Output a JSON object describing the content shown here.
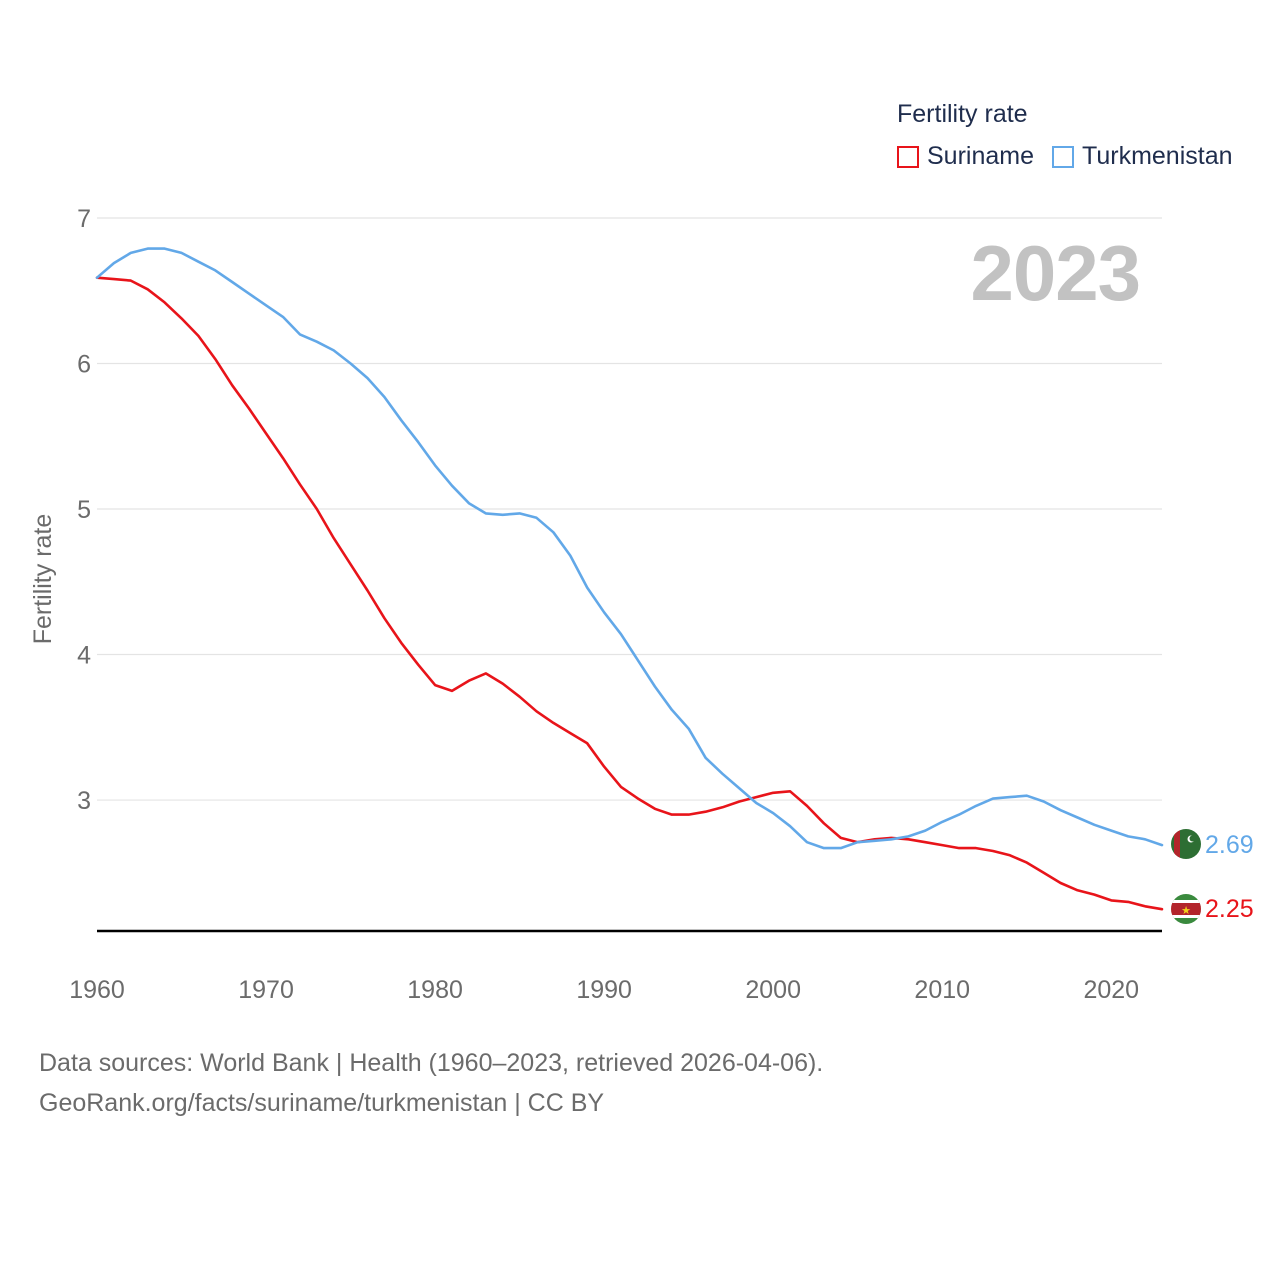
{
  "legend": {
    "title": "Fertility rate",
    "items": [
      {
        "label": "Suriname",
        "color": "#e8141a"
      },
      {
        "label": "Turkmenistan",
        "color": "#62a8e8"
      }
    ]
  },
  "current_year": "2023",
  "source": {
    "line1": "Data sources: World Bank | Health (1960–2023, retrieved 2026-04-06).",
    "line2": "GeoRank.org/facts/suriname/turkmenistan | CC BY"
  },
  "chart_data": {
    "type": "line",
    "title": "Fertility rate",
    "xlabel": "",
    "ylabel": "Fertility rate",
    "xlim": [
      1960,
      2023
    ],
    "ylim": [
      2.1,
      7
    ],
    "yticks": [
      3,
      4,
      5,
      6,
      7
    ],
    "xticks": [
      1960,
      1970,
      1980,
      1990,
      2000,
      2010,
      2020
    ],
    "grid": true,
    "series": [
      {
        "name": "Suriname",
        "color": "#e8141a",
        "end_label": "2.25",
        "x": [
          1960,
          1961,
          1962,
          1963,
          1964,
          1965,
          1966,
          1967,
          1968,
          1969,
          1970,
          1971,
          1972,
          1973,
          1974,
          1975,
          1976,
          1977,
          1978,
          1979,
          1980,
          1981,
          1982,
          1983,
          1984,
          1985,
          1986,
          1987,
          1988,
          1989,
          1990,
          1991,
          1992,
          1993,
          1994,
          1995,
          1996,
          1997,
          1998,
          1999,
          2000,
          2001,
          2002,
          2003,
          2004,
          2005,
          2006,
          2007,
          2008,
          2009,
          2010,
          2011,
          2012,
          2013,
          2014,
          2015,
          2016,
          2017,
          2018,
          2019,
          2020,
          2021,
          2022,
          2023
        ],
        "values": [
          6.59,
          6.58,
          6.57,
          6.51,
          6.42,
          6.31,
          6.19,
          6.03,
          5.85,
          5.69,
          5.52,
          5.35,
          5.17,
          5.0,
          4.8,
          4.62,
          4.44,
          4.25,
          4.08,
          3.93,
          3.79,
          3.75,
          3.82,
          3.87,
          3.8,
          3.71,
          3.61,
          3.53,
          3.46,
          3.39,
          3.23,
          3.09,
          3.01,
          2.94,
          2.9,
          2.9,
          2.92,
          2.95,
          2.99,
          3.02,
          3.05,
          3.06,
          2.96,
          2.84,
          2.74,
          2.71,
          2.73,
          2.74,
          2.73,
          2.71,
          2.69,
          2.67,
          2.67,
          2.65,
          2.62,
          2.57,
          2.5,
          2.43,
          2.38,
          2.35,
          2.31,
          2.3,
          2.27,
          2.25
        ]
      },
      {
        "name": "Turkmenistan",
        "color": "#62a8e8",
        "end_label": "2.69",
        "x": [
          1960,
          1961,
          1962,
          1963,
          1964,
          1965,
          1966,
          1967,
          1968,
          1969,
          1970,
          1971,
          1972,
          1973,
          1974,
          1975,
          1976,
          1977,
          1978,
          1979,
          1980,
          1981,
          1982,
          1983,
          1984,
          1985,
          1986,
          1987,
          1988,
          1989,
          1990,
          1991,
          1992,
          1993,
          1994,
          1995,
          1996,
          1997,
          1998,
          1999,
          2000,
          2001,
          2002,
          2003,
          2004,
          2005,
          2006,
          2007,
          2008,
          2009,
          2010,
          2011,
          2012,
          2013,
          2014,
          2015,
          2016,
          2017,
          2018,
          2019,
          2020,
          2021,
          2022,
          2023
        ],
        "values": [
          6.59,
          6.69,
          6.76,
          6.79,
          6.79,
          6.76,
          6.7,
          6.64,
          6.56,
          6.48,
          6.4,
          6.32,
          6.2,
          6.15,
          6.09,
          6.0,
          5.9,
          5.77,
          5.61,
          5.46,
          5.3,
          5.16,
          5.04,
          4.97,
          4.96,
          4.97,
          4.94,
          4.84,
          4.68,
          4.46,
          4.29,
          4.14,
          3.96,
          3.78,
          3.62,
          3.49,
          3.29,
          3.18,
          3.08,
          2.98,
          2.91,
          2.82,
          2.71,
          2.67,
          2.67,
          2.71,
          2.72,
          2.73,
          2.75,
          2.79,
          2.85,
          2.9,
          2.96,
          3.01,
          3.02,
          3.03,
          2.99,
          2.93,
          2.88,
          2.83,
          2.79,
          2.75,
          2.73,
          2.69
        ]
      }
    ]
  }
}
